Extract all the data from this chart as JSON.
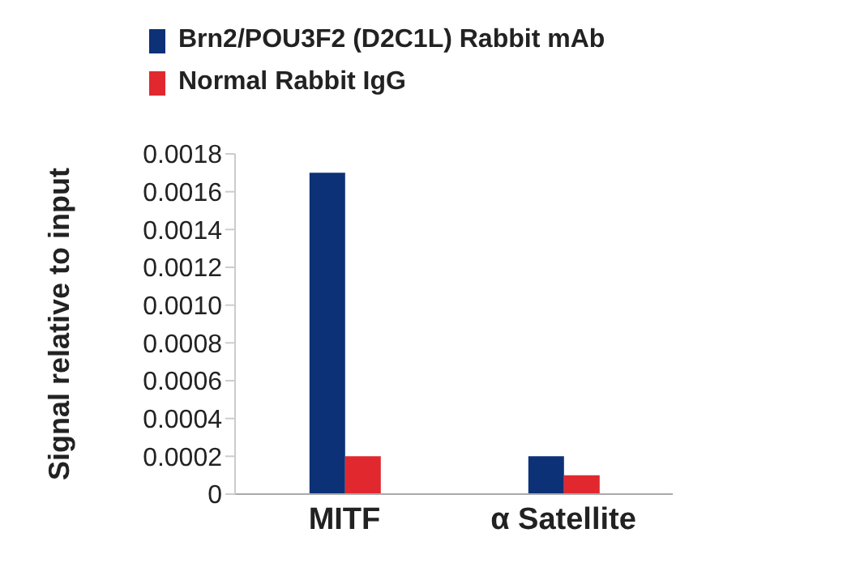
{
  "chart_data": {
    "type": "bar",
    "ylabel": "Signal relative to input",
    "categories": [
      "MITF",
      "α Satellite"
    ],
    "series": [
      {
        "name": "Brn2/POU3F2 (D2C1L) Rabbit mAb",
        "color": "#0c3176",
        "values": [
          0.0017,
          0.0002
        ]
      },
      {
        "name": "Normal Rabbit IgG",
        "color": "#e0282e",
        "values": [
          0.0002,
          0.0001
        ]
      }
    ],
    "ylim": [
      0,
      0.0018
    ],
    "yticks": [
      {
        "value": 0,
        "label": "0"
      },
      {
        "value": 0.0002,
        "label": "0.0002"
      },
      {
        "value": 0.0004,
        "label": "0.0004"
      },
      {
        "value": 0.0006,
        "label": "0.0006"
      },
      {
        "value": 0.0008,
        "label": "0.0008"
      },
      {
        "value": 0.001,
        "label": "0.0010"
      },
      {
        "value": 0.0012,
        "label": "0.0012"
      },
      {
        "value": 0.0014,
        "label": "0.0014"
      },
      {
        "value": 0.0016,
        "label": "0.0016"
      },
      {
        "value": 0.0018,
        "label": "0.0018"
      }
    ],
    "legend": "top",
    "grid": false
  }
}
